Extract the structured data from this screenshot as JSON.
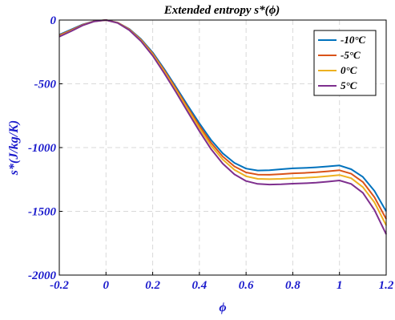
{
  "chart_data": {
    "type": "line",
    "title": "Extended entropy s*(ϕ)",
    "xlabel": "ϕ",
    "ylabel": "s*(J/kg/K)",
    "xlim": [
      -0.2,
      1.2
    ],
    "ylim": [
      -2000,
      0
    ],
    "xticks": [
      "-0.2",
      "0",
      "0.2",
      "0.4",
      "0.6",
      "0.8",
      "1",
      "1.2"
    ],
    "yticks": [
      "0",
      "-500",
      "-1000",
      "-1500",
      "-2000"
    ],
    "grid": true,
    "legend_position": "top-right",
    "x": [
      -0.2,
      -0.15,
      -0.1,
      -0.05,
      0,
      0.05,
      0.1,
      0.15,
      0.2,
      0.25,
      0.3,
      0.35,
      0.4,
      0.45,
      0.5,
      0.55,
      0.6,
      0.65,
      0.7,
      0.75,
      0.8,
      0.85,
      0.9,
      0.95,
      1.0,
      1.05,
      1.1,
      1.15,
      1.2
    ],
    "series": [
      {
        "name": "-10°C",
        "color": "#0072BD",
        "values": [
          -115,
          -75,
          -35,
          -8,
          0,
          -20,
          -70,
          -150,
          -255,
          -385,
          -525,
          -670,
          -810,
          -940,
          -1045,
          -1120,
          -1165,
          -1180,
          -1178,
          -1170,
          -1163,
          -1160,
          -1155,
          -1148,
          -1140,
          -1170,
          -1230,
          -1340,
          -1500
        ]
      },
      {
        "name": "-5°C",
        "color": "#D95319",
        "values": [
          -120,
          -80,
          -38,
          -9,
          0,
          -21,
          -73,
          -155,
          -263,
          -395,
          -538,
          -686,
          -830,
          -962,
          -1070,
          -1148,
          -1195,
          -1212,
          -1213,
          -1208,
          -1202,
          -1199,
          -1194,
          -1186,
          -1178,
          -1205,
          -1270,
          -1390,
          -1560
        ]
      },
      {
        "name": "0°C",
        "color": "#EDB120",
        "values": [
          -125,
          -85,
          -40,
          -10,
          0,
          -22,
          -76,
          -160,
          -270,
          -405,
          -550,
          -700,
          -848,
          -984,
          -1094,
          -1175,
          -1225,
          -1245,
          -1248,
          -1245,
          -1240,
          -1237,
          -1232,
          -1224,
          -1215,
          -1240,
          -1310,
          -1430,
          -1610
        ]
      },
      {
        "name": "5°C",
        "color": "#7E2F8E",
        "values": [
          -130,
          -88,
          -42,
          -11,
          0,
          -23,
          -79,
          -166,
          -280,
          -418,
          -566,
          -720,
          -872,
          -1012,
          -1126,
          -1210,
          -1262,
          -1285,
          -1290,
          -1288,
          -1283,
          -1280,
          -1275,
          -1267,
          -1258,
          -1285,
          -1355,
          -1490,
          -1680
        ]
      }
    ]
  }
}
